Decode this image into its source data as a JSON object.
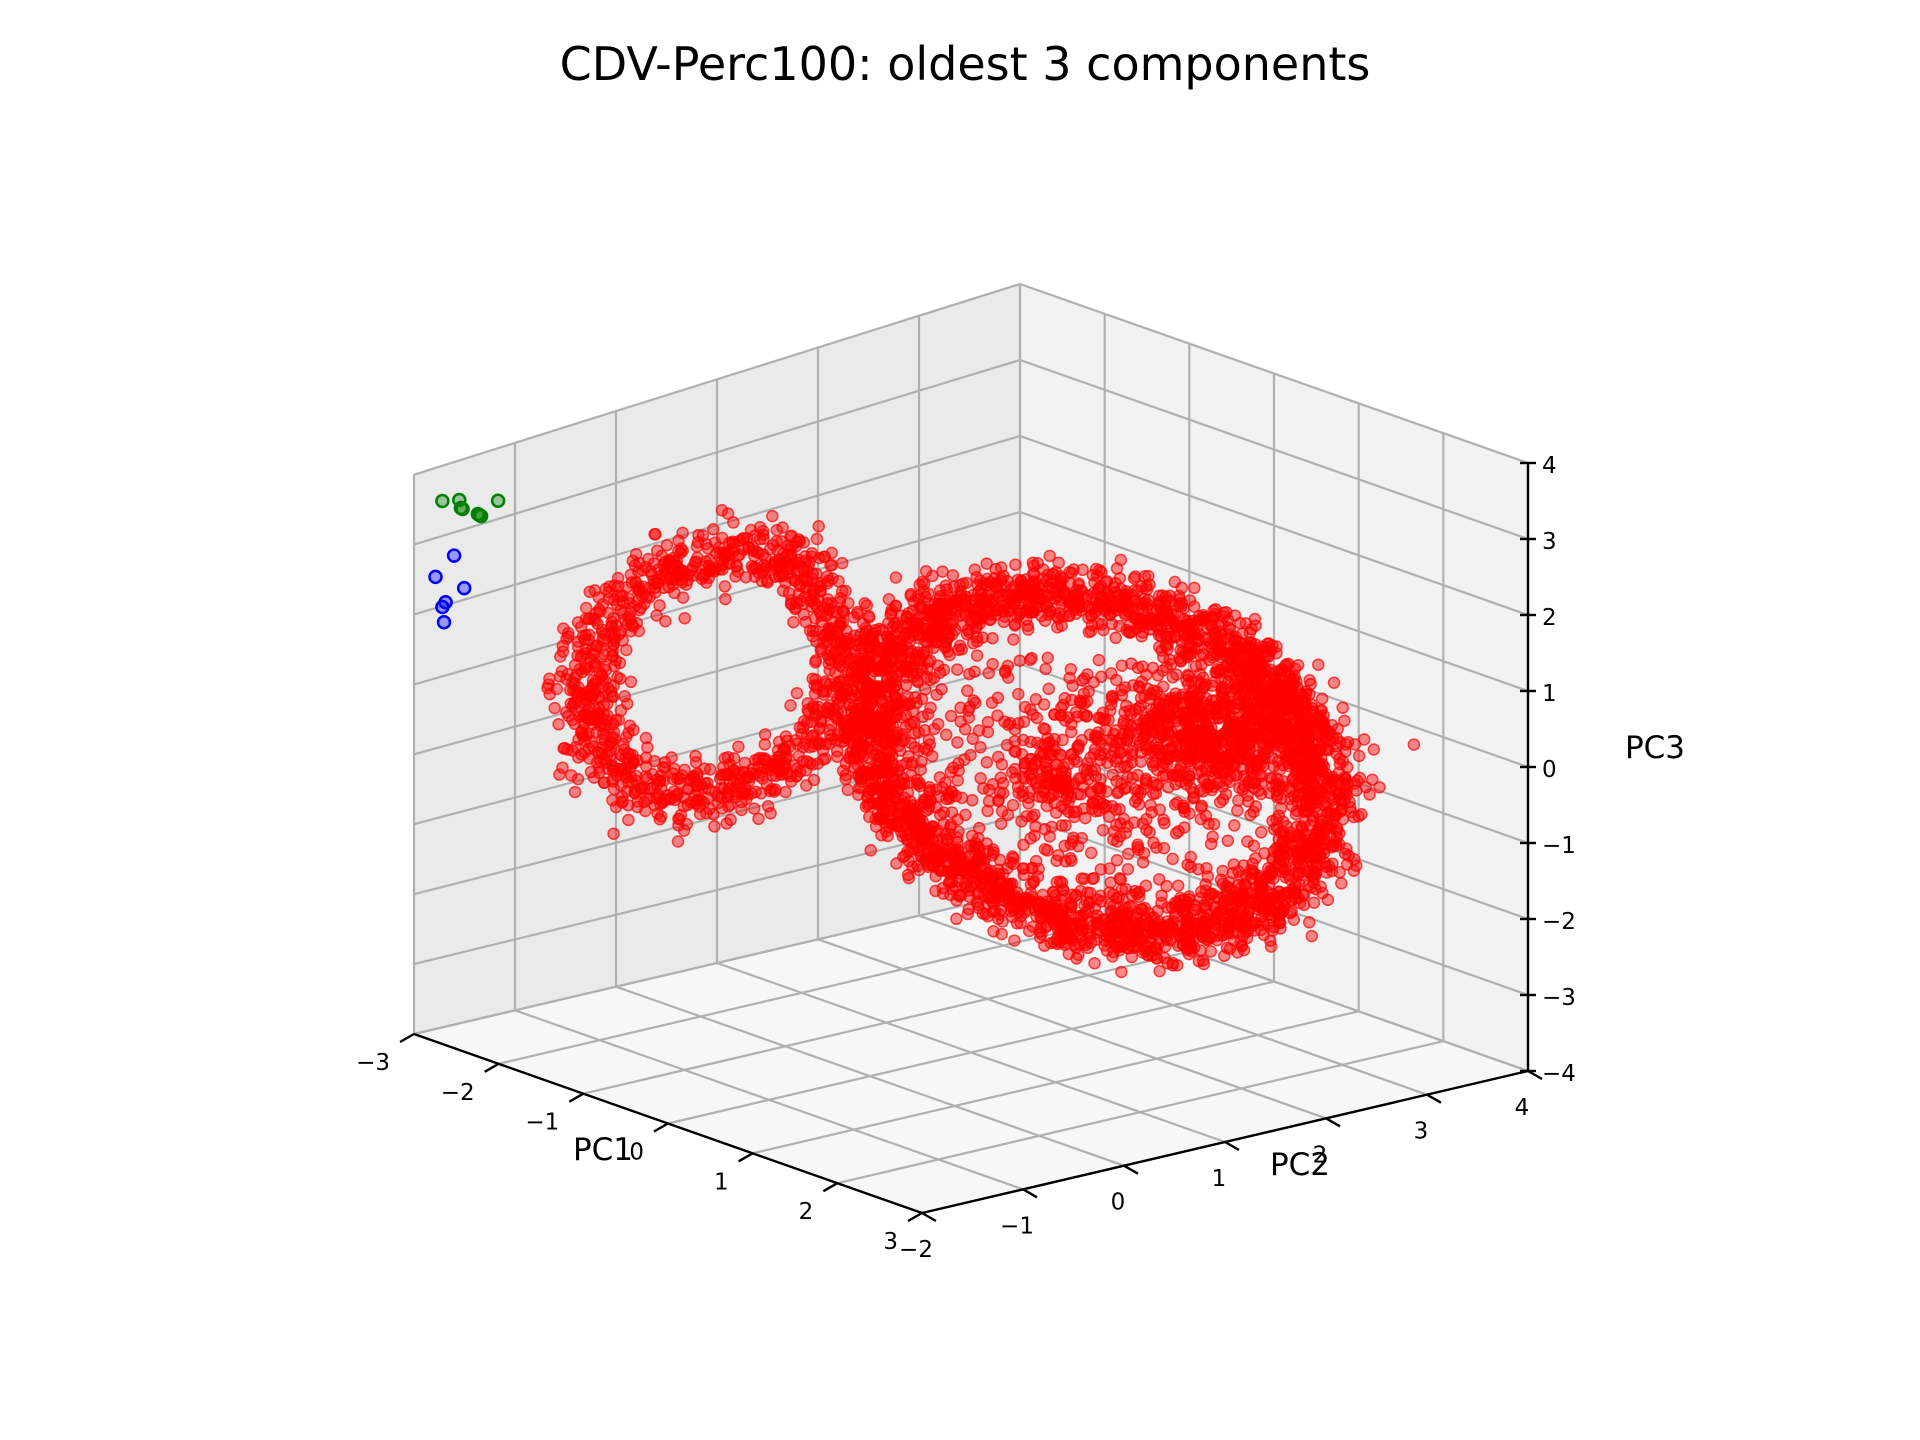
{
  "chart_data": {
    "type": "scatter",
    "projection": "3d",
    "title": "CDV-Perc100: oldest 3 components",
    "xlabel": "PC1",
    "ylabel": "PC2",
    "zlabel": "PC3",
    "xlim": [
      -3,
      3
    ],
    "ylim": [
      -2,
      4
    ],
    "zlim": [
      -4,
      4
    ],
    "xticks": [
      "−3",
      "−2",
      "−1",
      "0",
      "1",
      "2",
      "3"
    ],
    "yticks": [
      "−2",
      "−1",
      "0",
      "1",
      "2",
      "3",
      "4"
    ],
    "zticks": [
      "−4",
      "−3",
      "−2",
      "−1",
      "0",
      "1",
      "2",
      "3",
      "4"
    ],
    "grid": true,
    "colors": {
      "red": "#ff0000",
      "green": "#008000",
      "blue": "#0000ff"
    },
    "series": [
      {
        "color": "#ff0000",
        "marker": "o",
        "alpha": 0.6,
        "description_values": {
          "attractor": "two-lobed ring-shaped point cloud (figure-eight / butterfly-like orbit) with dense core",
          "center": [
            0.3,
            1.5,
            -0.1
          ],
          "ring_radius_approx": 1.8,
          "point_count_estimate": 6000
        }
      },
      {
        "color": "#008000",
        "marker": "o",
        "points": [
          [
            -3.4,
            -1.2,
            3.0
          ],
          [
            -3.3,
            -1.1,
            2.9
          ],
          [
            -3.5,
            -1.3,
            3.1
          ],
          [
            -3.2,
            -1.2,
            3.0
          ],
          [
            -3.4,
            -1.0,
            2.8
          ],
          [
            -3.3,
            -1.3,
            3.2
          ],
          [
            -3.5,
            -1.1,
            2.9
          ],
          [
            -3.2,
            -1.0,
            3.1
          ]
        ]
      },
      {
        "color": "#0000ff",
        "marker": "o",
        "points": [
          [
            -3.6,
            -1.1,
            2.2
          ],
          [
            -3.7,
            -1.2,
            1.9
          ],
          [
            -3.6,
            -1.0,
            1.7
          ],
          [
            -3.5,
            -1.3,
            1.6
          ],
          [
            -3.7,
            -1.1,
            1.5
          ],
          [
            -3.6,
            -1.2,
            1.3
          ]
        ]
      }
    ]
  }
}
